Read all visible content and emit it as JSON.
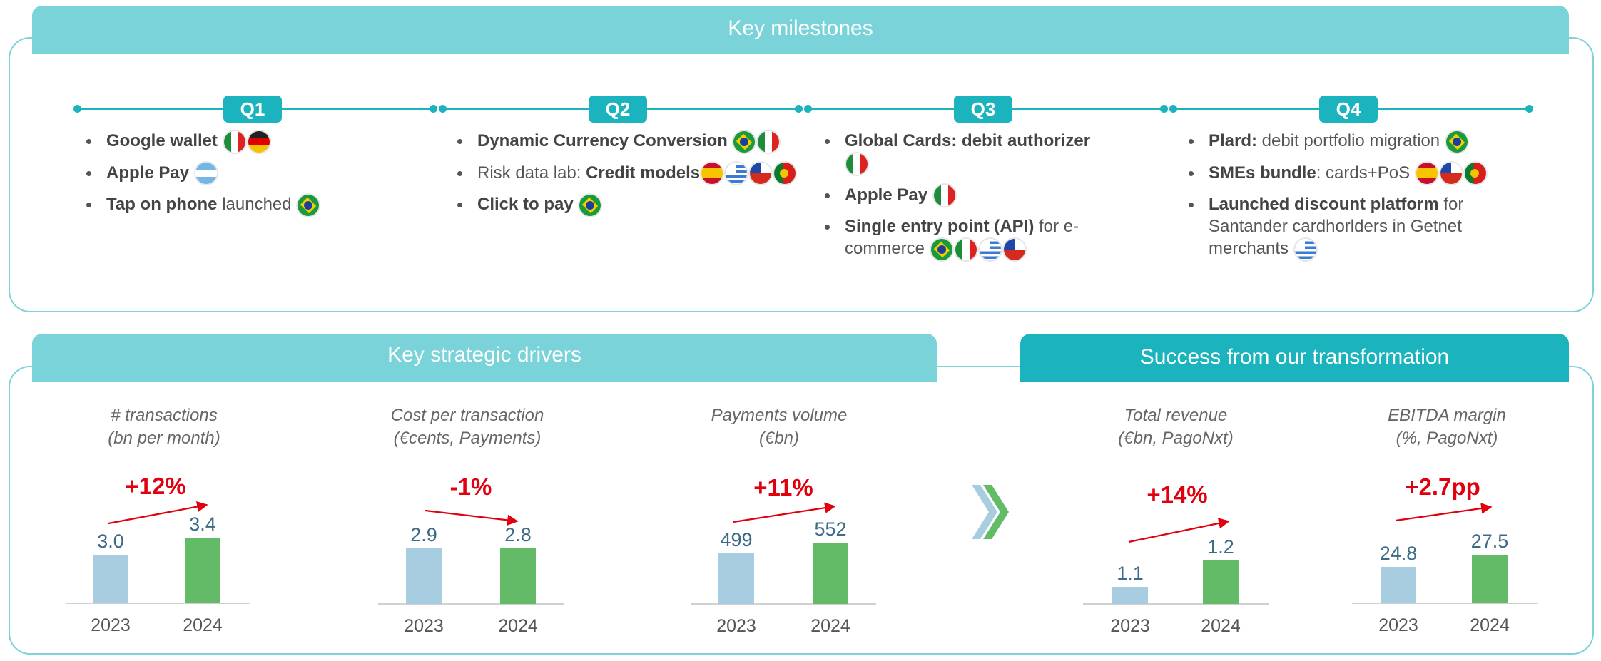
{
  "milestones": {
    "title": "Key milestones",
    "quarters": [
      {
        "label": "Q1"
      },
      {
        "label": "Q2"
      },
      {
        "label": "Q3"
      },
      {
        "label": "Q4"
      }
    ]
  },
  "q1_items": {
    "i0": {
      "b": "Google wallet"
    },
    "i1": {
      "b": "Apple Pay"
    },
    "i2": {
      "b": "Tap on phone",
      "t": " launched"
    }
  },
  "q2_items": {
    "i0": {
      "b": "Dynamic Currency Conversion"
    },
    "i1": {
      "t": "Risk data lab: ",
      "b": "Credit models"
    },
    "i2": {
      "b": "Click to pay"
    }
  },
  "q3_items": {
    "i0": {
      "b": "Global Cards: debit authorizer"
    },
    "i1": {
      "b": "Apple Pay"
    },
    "i2": {
      "b": "Single entry point (API)",
      "t": " for e-commerce"
    }
  },
  "q4_items": {
    "i0": {
      "b": "Plard:",
      "t": " debit portfolio migration"
    },
    "i1": {
      "b": "SMEs bundle",
      "t": ": cards+PoS"
    },
    "i2": {
      "b": "Launched discount platform",
      "t": " for Santander cardhorlders in Getnet merchants"
    }
  },
  "drivers": {
    "title": "Key strategic drivers"
  },
  "success": {
    "title": "Success from our transformation"
  },
  "colors": {
    "bar_2023": "#a9cde0",
    "bar_2024": "#64bb67",
    "growth": "#e0000e",
    "value_text": "#3d6a85",
    "axis_text": "#555555"
  },
  "chart_data": [
    {
      "type": "bar",
      "title": "# transactions",
      "subtitle": "(bn per month)",
      "categories": [
        "2023",
        "2024"
      ],
      "values": [
        3.0,
        3.4
      ],
      "value_labels": [
        "3.0",
        "3.4"
      ],
      "growth": "+12%"
    },
    {
      "type": "bar",
      "title": "Cost per transaction",
      "subtitle": "(€cents, Payments)",
      "categories": [
        "2023",
        "2024"
      ],
      "values": [
        2.9,
        2.8
      ],
      "value_labels": [
        "2.9",
        "2.8"
      ],
      "growth": "-1%"
    },
    {
      "type": "bar",
      "title": "Payments volume",
      "subtitle": "(€bn)",
      "categories": [
        "2023",
        "2024"
      ],
      "values": [
        499,
        552
      ],
      "value_labels": [
        "499",
        "552"
      ],
      "growth": "+11%"
    },
    {
      "type": "bar",
      "title": "Total revenue",
      "subtitle": "(€bn, PagoNxt)",
      "categories": [
        "2023",
        "2024"
      ],
      "values": [
        1.1,
        1.2
      ],
      "value_labels": [
        "1.1",
        "1.2"
      ],
      "growth": "+14%"
    },
    {
      "type": "bar",
      "title": "EBITDA margin",
      "subtitle": "(%, PagoNxt)",
      "categories": [
        "2023",
        "2024"
      ],
      "values": [
        24.8,
        27.5
      ],
      "value_labels": [
        "24.8",
        "27.5"
      ],
      "growth": "+2.7pp"
    }
  ]
}
